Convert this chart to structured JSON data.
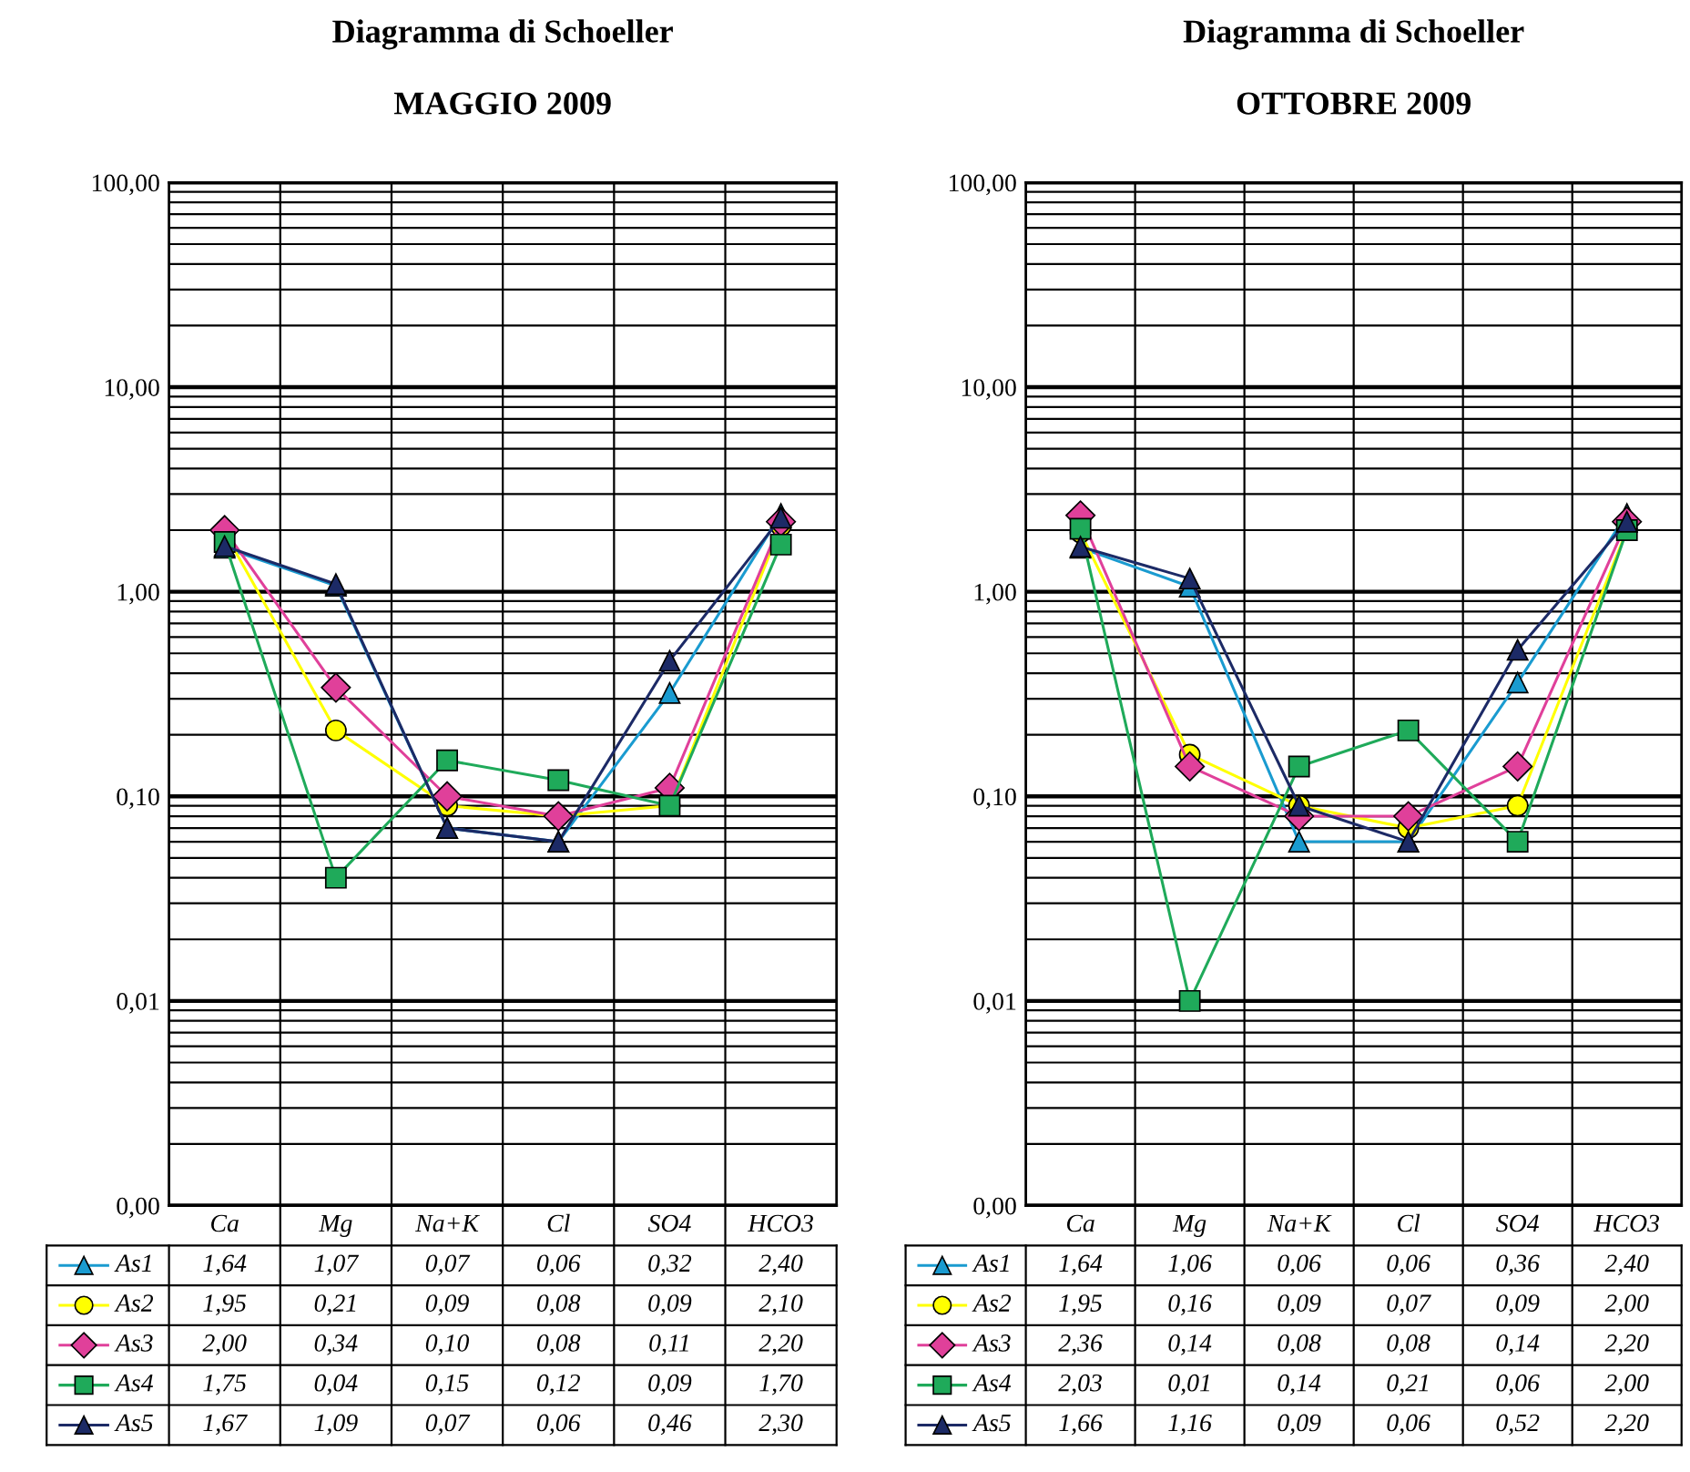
{
  "chart_data": [
    {
      "type": "line",
      "title": "Diagramma di Schoeller",
      "subtitle": "MAGGIO 2009",
      "categories": [
        "Ca",
        "Mg",
        "Na+K",
        "Cl",
        "SO4",
        "HCO3"
      ],
      "log": true,
      "ylim": [
        0.001,
        100
      ],
      "yticks": [
        {
          "value": 0.001,
          "label": "0,00"
        },
        {
          "value": 0.01,
          "label": "0,01"
        },
        {
          "value": 0.1,
          "label": "0,10"
        },
        {
          "value": 1,
          "label": "1,00"
        },
        {
          "value": 10,
          "label": "10,00"
        },
        {
          "value": 100,
          "label": "100,00"
        }
      ],
      "grid": true,
      "legend": "bottom left",
      "series": [
        {
          "name": "As1",
          "color": "#1a9bd0",
          "marker": "triangle",
          "values": [
            1.64,
            1.07,
            0.07,
            0.06,
            0.32,
            2.4
          ],
          "value_labels": [
            "1,64",
            "1,07",
            "0,07",
            "0,06",
            "0,32",
            "2,40"
          ]
        },
        {
          "name": "As2",
          "color": "#ffff00",
          "marker": "circle",
          "values": [
            1.95,
            0.21,
            0.09,
            0.08,
            0.09,
            2.1
          ],
          "value_labels": [
            "1,95",
            "0,21",
            "0,09",
            "0,08",
            "0,09",
            "2,10"
          ]
        },
        {
          "name": "As3",
          "color": "#e0409a",
          "marker": "diamond",
          "values": [
            2.0,
            0.34,
            0.1,
            0.08,
            0.11,
            2.2
          ],
          "value_labels": [
            "2,00",
            "0,34",
            "0,10",
            "0,08",
            "0,11",
            "2,20"
          ]
        },
        {
          "name": "As4",
          "color": "#1faa5a",
          "marker": "square",
          "values": [
            1.75,
            0.04,
            0.15,
            0.12,
            0.09,
            1.7
          ],
          "value_labels": [
            "1,75",
            "0,04",
            "0,15",
            "0,12",
            "0,09",
            "1,70"
          ]
        },
        {
          "name": "As5",
          "color": "#1c2a66",
          "marker": "triangle",
          "values": [
            1.67,
            1.09,
            0.07,
            0.06,
            0.46,
            2.3
          ],
          "value_labels": [
            "1,67",
            "1,09",
            "0,07",
            "0,06",
            "0,46",
            "2,30"
          ]
        }
      ]
    },
    {
      "type": "line",
      "title": "Diagramma di Schoeller",
      "subtitle": "OTTOBRE 2009",
      "categories": [
        "Ca",
        "Mg",
        "Na+K",
        "Cl",
        "SO4",
        "HCO3"
      ],
      "log": true,
      "ylim": [
        0.001,
        100
      ],
      "yticks": [
        {
          "value": 0.001,
          "label": "0,00"
        },
        {
          "value": 0.01,
          "label": "0,01"
        },
        {
          "value": 0.1,
          "label": "0,10"
        },
        {
          "value": 1,
          "label": "1,00"
        },
        {
          "value": 10,
          "label": "10,00"
        },
        {
          "value": 100,
          "label": "100,00"
        }
      ],
      "grid": true,
      "legend": "bottom left",
      "series": [
        {
          "name": "As1",
          "color": "#1a9bd0",
          "marker": "triangle",
          "values": [
            1.64,
            1.06,
            0.06,
            0.06,
            0.36,
            2.4
          ],
          "value_labels": [
            "1,64",
            "1,06",
            "0,06",
            "0,06",
            "0,36",
            "2,40"
          ]
        },
        {
          "name": "As2",
          "color": "#ffff00",
          "marker": "circle",
          "values": [
            1.95,
            0.16,
            0.09,
            0.07,
            0.09,
            2.0
          ],
          "value_labels": [
            "1,95",
            "0,16",
            "0,09",
            "0,07",
            "0,09",
            "2,00"
          ]
        },
        {
          "name": "As3",
          "color": "#e0409a",
          "marker": "diamond",
          "values": [
            2.36,
            0.14,
            0.08,
            0.08,
            0.14,
            2.2
          ],
          "value_labels": [
            "2,36",
            "0,14",
            "0,08",
            "0,08",
            "0,14",
            "2,20"
          ]
        },
        {
          "name": "As4",
          "color": "#1faa5a",
          "marker": "square",
          "values": [
            2.03,
            0.01,
            0.14,
            0.21,
            0.06,
            2.0
          ],
          "value_labels": [
            "2,03",
            "0,01",
            "0,14",
            "0,21",
            "0,06",
            "2,00"
          ]
        },
        {
          "name": "As5",
          "color": "#1c2a66",
          "marker": "triangle",
          "values": [
            1.66,
            1.16,
            0.09,
            0.06,
            0.52,
            2.2
          ],
          "value_labels": [
            "1,66",
            "1,16",
            "0,09",
            "0,06",
            "0,52",
            "2,20"
          ]
        }
      ]
    }
  ]
}
